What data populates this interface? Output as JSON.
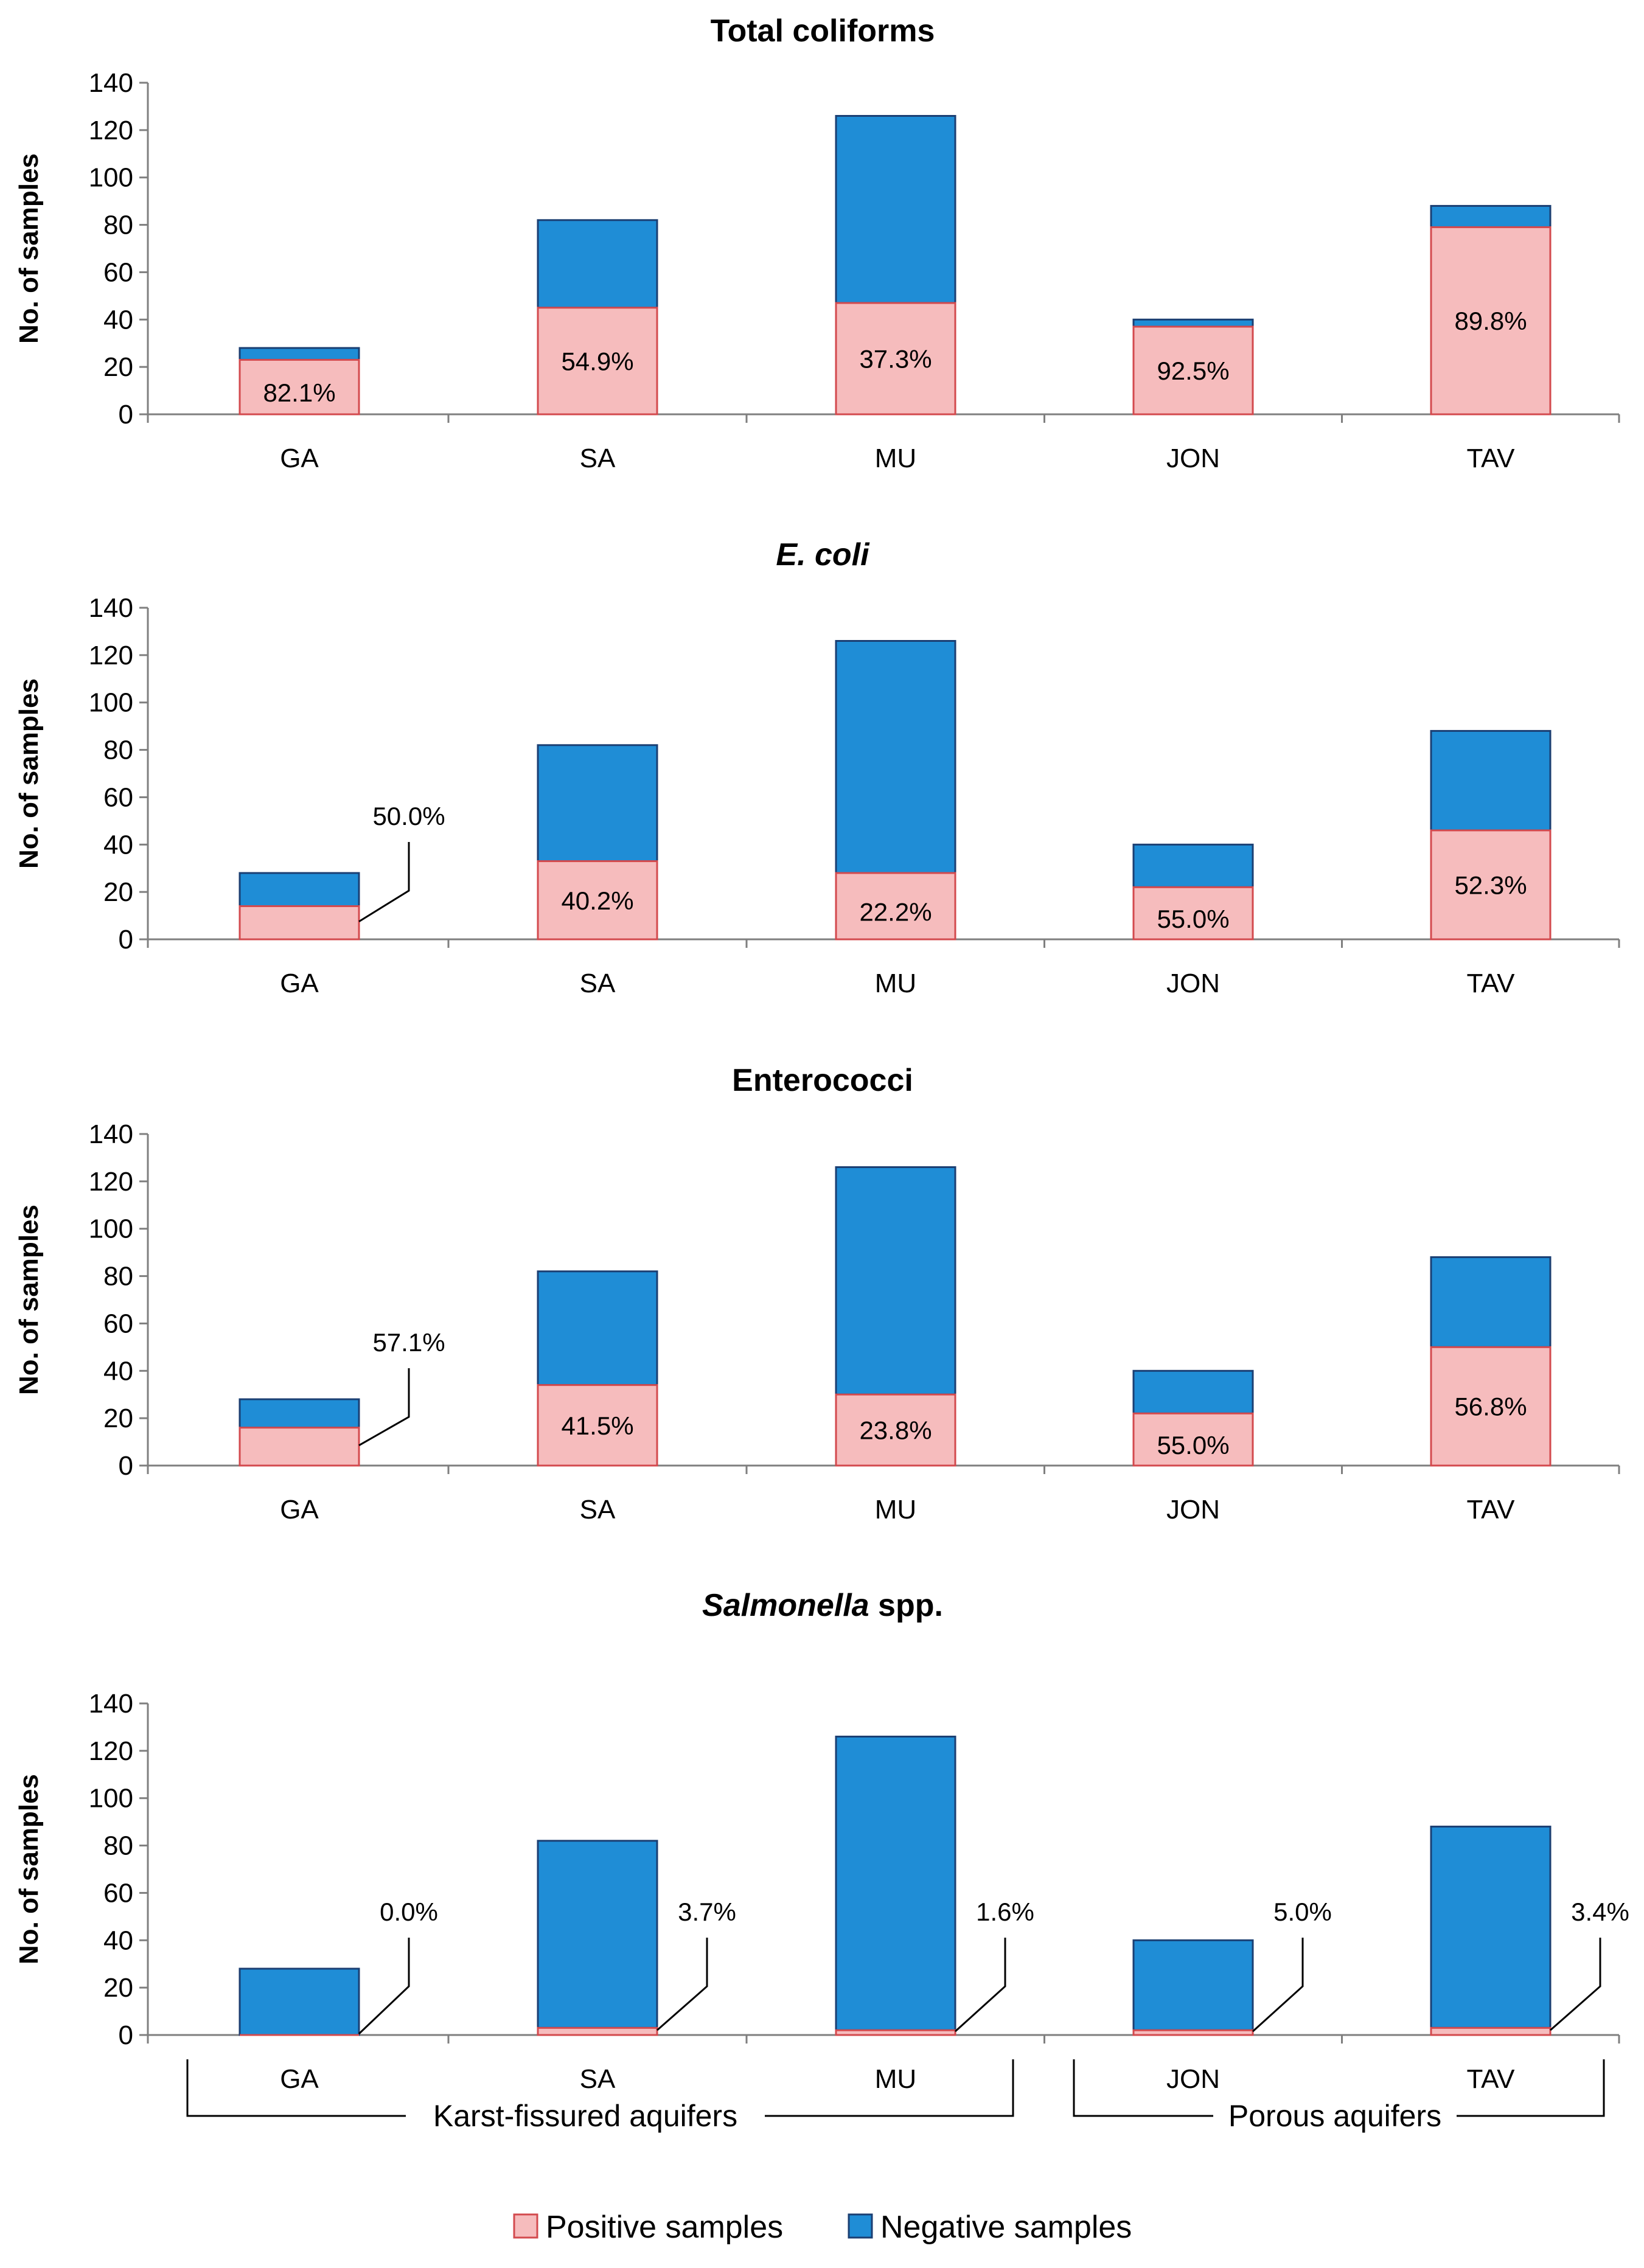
{
  "chart_data": [
    {
      "type": "bar",
      "stacked": true,
      "title": "Total coliforms",
      "title_parts": [
        {
          "text": "Total coliforms",
          "italic": false
        }
      ],
      "ylabel": "No. of samples",
      "ylim": [
        0,
        140
      ],
      "yticks": [
        0,
        20,
        40,
        60,
        80,
        100,
        120,
        140
      ],
      "categories": [
        "GA",
        "SA",
        "MU",
        "JON",
        "TAV"
      ],
      "series": [
        {
          "name": "Positive samples",
          "values": [
            23,
            45,
            47,
            37,
            79
          ]
        },
        {
          "name": "Negative samples",
          "values": [
            5,
            37,
            79,
            3,
            9
          ]
        }
      ],
      "labels": [
        "82.1%",
        "54.9%",
        "37.3%",
        "92.5%",
        "89.8%"
      ],
      "label_callout": [
        false,
        false,
        false,
        false,
        false
      ]
    },
    {
      "type": "bar",
      "stacked": true,
      "title": "E. coli",
      "title_parts": [
        {
          "text": "E. coli",
          "italic": true
        }
      ],
      "ylabel": "No. of samples",
      "ylim": [
        0,
        140
      ],
      "yticks": [
        0,
        20,
        40,
        60,
        80,
        100,
        120,
        140
      ],
      "categories": [
        "GA",
        "SA",
        "MU",
        "JON",
        "TAV"
      ],
      "series": [
        {
          "name": "Positive samples",
          "values": [
            14,
            33,
            28,
            22,
            46
          ]
        },
        {
          "name": "Negative samples",
          "values": [
            14,
            49,
            98,
            18,
            42
          ]
        }
      ],
      "labels": [
        "50.0%",
        "40.2%",
        "22.2%",
        "55.0%",
        "52.3%"
      ],
      "label_callout": [
        true,
        false,
        false,
        false,
        false
      ]
    },
    {
      "type": "bar",
      "stacked": true,
      "title": "Enterococci",
      "title_parts": [
        {
          "text": "Enterococci",
          "italic": false
        }
      ],
      "ylabel": "No. of samples",
      "ylim": [
        0,
        140
      ],
      "yticks": [
        0,
        20,
        40,
        60,
        80,
        100,
        120,
        140
      ],
      "categories": [
        "GA",
        "SA",
        "MU",
        "JON",
        "TAV"
      ],
      "series": [
        {
          "name": "Positive samples",
          "values": [
            16,
            34,
            30,
            22,
            50
          ]
        },
        {
          "name": "Negative samples",
          "values": [
            12,
            48,
            96,
            18,
            38
          ]
        }
      ],
      "labels": [
        "57.1%",
        "41.5%",
        "23.8%",
        "55.0%",
        "56.8%"
      ],
      "label_callout": [
        true,
        false,
        false,
        false,
        false
      ]
    },
    {
      "type": "bar",
      "stacked": true,
      "title": "Salmonella spp.",
      "title_parts": [
        {
          "text": "Salmonella",
          "italic": true
        },
        {
          "text": " spp.",
          "italic": false
        }
      ],
      "ylabel": "No. of samples",
      "ylim": [
        0,
        140
      ],
      "yticks": [
        0,
        20,
        40,
        60,
        80,
        100,
        120,
        140
      ],
      "categories": [
        "GA",
        "SA",
        "MU",
        "JON",
        "TAV"
      ],
      "series": [
        {
          "name": "Positive samples",
          "values": [
            0,
            3,
            2,
            2,
            3
          ]
        },
        {
          "name": "Negative samples",
          "values": [
            28,
            79,
            124,
            38,
            85
          ]
        }
      ],
      "labels": [
        "0.0%",
        "3.7%",
        "1.6%",
        "5.0%",
        "3.4%"
      ],
      "label_callout": [
        true,
        true,
        true,
        true,
        true
      ]
    }
  ],
  "groups": [
    {
      "label": "Karst-fissured aquifers",
      "categories": [
        "GA",
        "SA",
        "MU"
      ]
    },
    {
      "label": "Porous aquifers",
      "categories": [
        "JON",
        "TAV"
      ]
    }
  ],
  "legend": [
    {
      "label": "Positive samples",
      "color": "#f6bcbd",
      "stroke": "#d34a4e"
    },
    {
      "label": "Negative samples",
      "color": "#1f8dd6",
      "stroke": "#1b3f73"
    }
  ],
  "colors": {
    "positive_fill": "#f6bcbd",
    "positive_stroke": "#d34a4e",
    "negative_fill": "#1f8dd6",
    "negative_stroke": "#1b3f73",
    "axis": "#7f7f7f"
  }
}
